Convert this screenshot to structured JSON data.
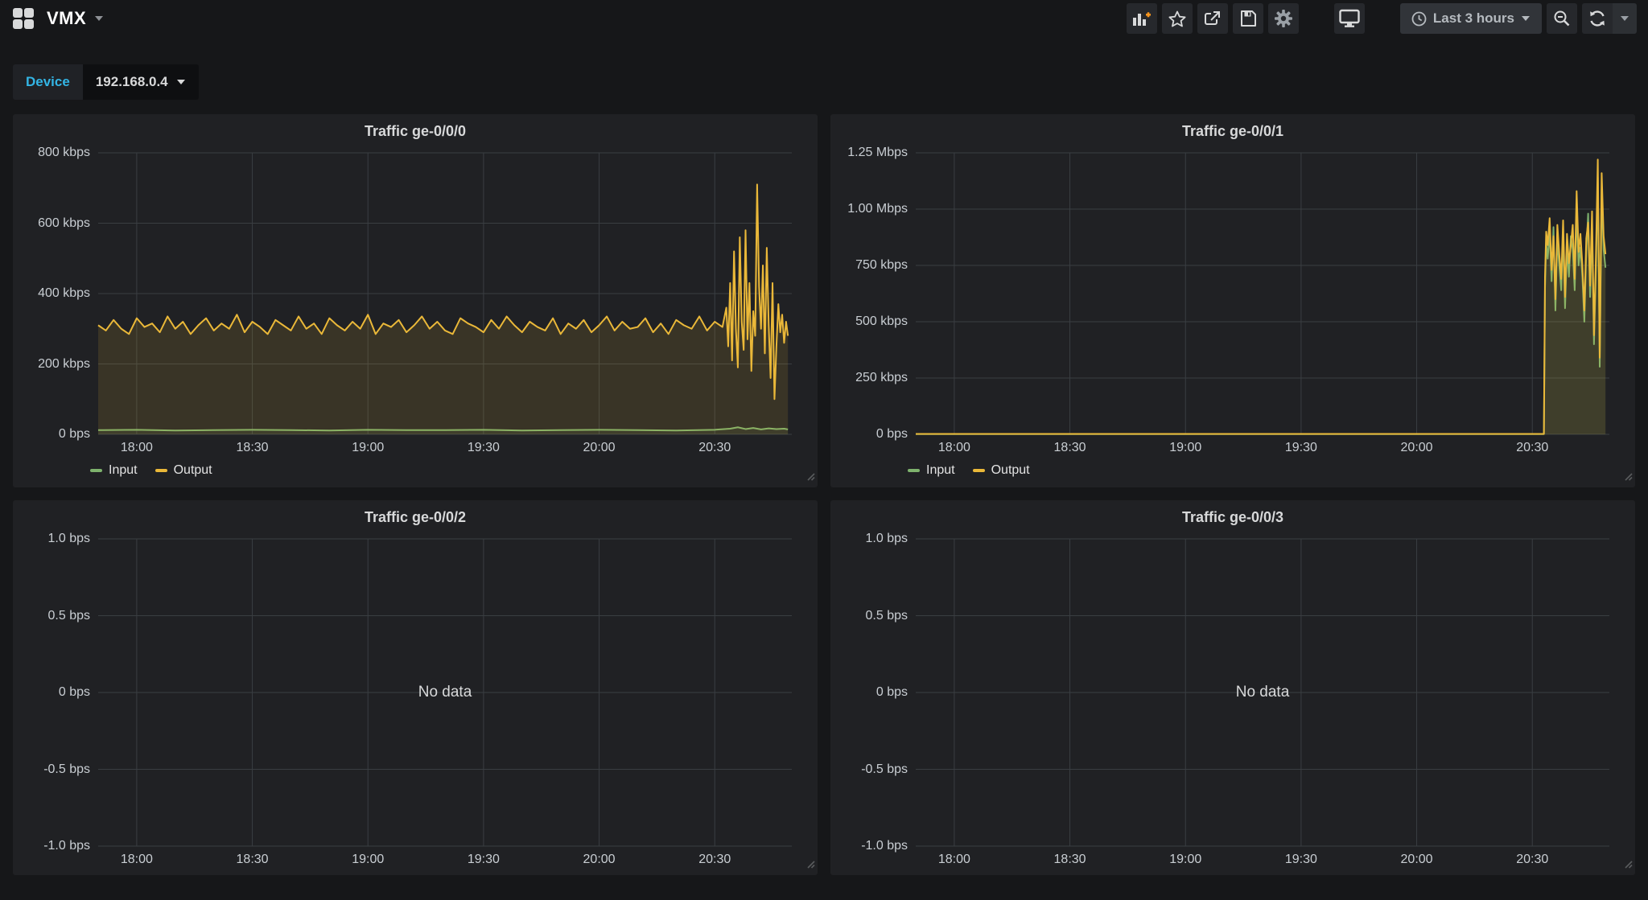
{
  "navbar": {
    "title": "VMX",
    "time_range_label": "Last 3 hours",
    "icons": [
      "grid-logo",
      "caret-down",
      "add-panel",
      "star",
      "share",
      "save",
      "settings-gear",
      "cycle-view-monitor",
      "clock",
      "zoom-out",
      "refresh",
      "refresh-caret"
    ]
  },
  "variables": {
    "label": "Device",
    "value": "192.168.0.4"
  },
  "colors": {
    "page_bg": "#161719",
    "panel_bg": "#202124",
    "grid_line": "#3a3e42",
    "input_green": "#7EB26D",
    "output_yellow": "#EAB839",
    "accent_cyan": "#33b5e5",
    "add_plus_orange": "#f7941e",
    "axis_text": "#c9ced3",
    "title_text": "#d8d9da"
  },
  "chart_data": [
    {
      "type": "area",
      "title": "Traffic ge-0/0/0",
      "unit": "kbps",
      "x_range_minutes": [
        0,
        180
      ],
      "x_ticks": [
        {
          "m": 10,
          "label": "18:00"
        },
        {
          "m": 40,
          "label": "18:30"
        },
        {
          "m": 70,
          "label": "19:00"
        },
        {
          "m": 100,
          "label": "19:30"
        },
        {
          "m": 130,
          "label": "20:00"
        },
        {
          "m": 160,
          "label": "20:30"
        }
      ],
      "y_min": 0,
      "y_max": 800,
      "y_ticks": [
        {
          "v": 800,
          "label": "800 kbps"
        },
        {
          "v": 600,
          "label": "600 kbps"
        },
        {
          "v": 400,
          "label": "400 kbps"
        },
        {
          "v": 200,
          "label": "200 kbps"
        },
        {
          "v": 0,
          "label": "0 bps"
        }
      ],
      "legend_position": "bottom-left",
      "series": [
        {
          "name": "Input",
          "color": "#7EB26D",
          "fill_opacity": 0.08,
          "points": [
            [
              0,
              12
            ],
            [
              10,
              13
            ],
            [
              20,
              11
            ],
            [
              30,
              12
            ],
            [
              40,
              13
            ],
            [
              50,
              12
            ],
            [
              60,
              11
            ],
            [
              70,
              13
            ],
            [
              80,
              12
            ],
            [
              90,
              12
            ],
            [
              100,
              13
            ],
            [
              110,
              11
            ],
            [
              120,
              12
            ],
            [
              130,
              13
            ],
            [
              140,
              12
            ],
            [
              150,
              11
            ],
            [
              160,
              13
            ],
            [
              164,
              16
            ],
            [
              166,
              20
            ],
            [
              168,
              15
            ],
            [
              170,
              18
            ],
            [
              172,
              14
            ],
            [
              174,
              17
            ],
            [
              176,
              15
            ],
            [
              178,
              16
            ],
            [
              179,
              14
            ]
          ]
        },
        {
          "name": "Output",
          "color": "#EAB839",
          "fill_opacity": 0.13,
          "points": [
            [
              0,
              310
            ],
            [
              2,
              295
            ],
            [
              4,
              325
            ],
            [
              6,
              300
            ],
            [
              8,
              285
            ],
            [
              10,
              330
            ],
            [
              12,
              305
            ],
            [
              14,
              315
            ],
            [
              16,
              290
            ],
            [
              18,
              335
            ],
            [
              20,
              300
            ],
            [
              22,
              320
            ],
            [
              24,
              285
            ],
            [
              26,
              310
            ],
            [
              28,
              330
            ],
            [
              30,
              295
            ],
            [
              32,
              315
            ],
            [
              34,
              300
            ],
            [
              36,
              340
            ],
            [
              38,
              290
            ],
            [
              40,
              320
            ],
            [
              42,
              305
            ],
            [
              44,
              285
            ],
            [
              46,
              325
            ],
            [
              48,
              310
            ],
            [
              50,
              295
            ],
            [
              52,
              335
            ],
            [
              54,
              300
            ],
            [
              56,
              315
            ],
            [
              58,
              285
            ],
            [
              60,
              330
            ],
            [
              62,
              310
            ],
            [
              64,
              295
            ],
            [
              66,
              320
            ],
            [
              68,
              300
            ],
            [
              70,
              340
            ],
            [
              72,
              285
            ],
            [
              74,
              315
            ],
            [
              76,
              305
            ],
            [
              78,
              325
            ],
            [
              80,
              290
            ],
            [
              82,
              310
            ],
            [
              84,
              335
            ],
            [
              86,
              300
            ],
            [
              88,
              320
            ],
            [
              90,
              295
            ],
            [
              92,
              285
            ],
            [
              94,
              330
            ],
            [
              96,
              315
            ],
            [
              98,
              305
            ],
            [
              100,
              290
            ],
            [
              102,
              325
            ],
            [
              104,
              300
            ],
            [
              106,
              335
            ],
            [
              108,
              310
            ],
            [
              110,
              290
            ],
            [
              112,
              320
            ],
            [
              114,
              305
            ],
            [
              116,
              295
            ],
            [
              118,
              330
            ],
            [
              120,
              285
            ],
            [
              122,
              315
            ],
            [
              124,
              300
            ],
            [
              126,
              325
            ],
            [
              128,
              290
            ],
            [
              130,
              310
            ],
            [
              132,
              335
            ],
            [
              134,
              295
            ],
            [
              136,
              320
            ],
            [
              138,
              300
            ],
            [
              140,
              305
            ],
            [
              142,
              330
            ],
            [
              144,
              290
            ],
            [
              146,
              315
            ],
            [
              148,
              285
            ],
            [
              150,
              325
            ],
            [
              152,
              310
            ],
            [
              154,
              300
            ],
            [
              156,
              335
            ],
            [
              158,
              295
            ],
            [
              160,
              320
            ],
            [
              162,
              305
            ],
            [
              163,
              360
            ],
            [
              163.5,
              250
            ],
            [
              164,
              430
            ],
            [
              164.5,
              210
            ],
            [
              165,
              520
            ],
            [
              165.5,
              300
            ],
            [
              166,
              190
            ],
            [
              166.5,
              560
            ],
            [
              167,
              320
            ],
            [
              167.5,
              240
            ],
            [
              168,
              580
            ],
            [
              168.5,
              270
            ],
            [
              169,
              430
            ],
            [
              169.5,
              180
            ],
            [
              170,
              350
            ],
            [
              170.5,
              280
            ],
            [
              171,
              710
            ],
            [
              171.5,
              420
            ],
            [
              172,
              300
            ],
            [
              172.5,
              480
            ],
            [
              173,
              230
            ],
            [
              173.5,
              530
            ],
            [
              174,
              310
            ],
            [
              174.5,
              160
            ],
            [
              175,
              430
            ],
            [
              175.5,
              100
            ],
            [
              176,
              250
            ],
            [
              176.5,
              370
            ],
            [
              177,
              290
            ],
            [
              177.5,
              340
            ],
            [
              178,
              260
            ],
            [
              178.5,
              320
            ],
            [
              179,
              280
            ]
          ]
        }
      ]
    },
    {
      "type": "area",
      "title": "Traffic ge-0/0/1",
      "unit": "kbps",
      "x_range_minutes": [
        0,
        180
      ],
      "x_ticks": [
        {
          "m": 10,
          "label": "18:00"
        },
        {
          "m": 40,
          "label": "18:30"
        },
        {
          "m": 70,
          "label": "19:00"
        },
        {
          "m": 100,
          "label": "19:30"
        },
        {
          "m": 130,
          "label": "20:00"
        },
        {
          "m": 160,
          "label": "20:30"
        }
      ],
      "y_min": 0,
      "y_max": 1250,
      "y_ticks": [
        {
          "v": 1250,
          "label": "1.25 Mbps"
        },
        {
          "v": 1000,
          "label": "1.00 Mbps"
        },
        {
          "v": 750,
          "label": "750 kbps"
        },
        {
          "v": 500,
          "label": "500 kbps"
        },
        {
          "v": 250,
          "label": "250 kbps"
        },
        {
          "v": 0,
          "label": "0 bps"
        }
      ],
      "legend_position": "bottom-left",
      "series": [
        {
          "name": "Input",
          "color": "#7EB26D",
          "fill_opacity": 0.08,
          "points": [
            [
              0,
              1
            ],
            [
              40,
              1
            ],
            [
              80,
              1
            ],
            [
              120,
              1
            ],
            [
              160,
              1
            ],
            [
              163,
              1
            ],
            [
              163.3,
              650
            ],
            [
              163.6,
              850
            ],
            [
              164,
              780
            ],
            [
              164.5,
              900
            ],
            [
              165,
              680
            ],
            [
              165.5,
              920
            ],
            [
              166,
              550
            ],
            [
              166.5,
              870
            ],
            [
              167,
              750
            ],
            [
              167.5,
              640
            ],
            [
              168,
              890
            ],
            [
              168.5,
              560
            ],
            [
              169,
              830
            ],
            [
              169.5,
              700
            ],
            [
              170,
              880
            ],
            [
              170.5,
              820
            ],
            [
              171,
              640
            ],
            [
              171.5,
              1000
            ],
            [
              172,
              750
            ],
            [
              172.5,
              830
            ],
            [
              173,
              700
            ],
            [
              173.5,
              500
            ],
            [
              174,
              810
            ],
            [
              174.5,
              980
            ],
            [
              175,
              610
            ],
            [
              175.5,
              930
            ],
            [
              176,
              400
            ],
            [
              176.5,
              740
            ],
            [
              177,
              1140
            ],
            [
              177.5,
              300
            ],
            [
              178,
              1090
            ],
            [
              178.5,
              820
            ],
            [
              179,
              740
            ]
          ]
        },
        {
          "name": "Output",
          "color": "#EAB839",
          "fill_opacity": 0.13,
          "points": [
            [
              0,
              2
            ],
            [
              40,
              2
            ],
            [
              80,
              2
            ],
            [
              120,
              2
            ],
            [
              160,
              2
            ],
            [
              163,
              2
            ],
            [
              163.3,
              700
            ],
            [
              163.6,
              900
            ],
            [
              164,
              840
            ],
            [
              164.5,
              960
            ],
            [
              165,
              730
            ],
            [
              165.5,
              880
            ],
            [
              166,
              600
            ],
            [
              166.5,
              930
            ],
            [
              167,
              800
            ],
            [
              167.5,
              690
            ],
            [
              168,
              950
            ],
            [
              168.5,
              610
            ],
            [
              169,
              890
            ],
            [
              169.5,
              760
            ],
            [
              170,
              840
            ],
            [
              170.5,
              930
            ],
            [
              171,
              690
            ],
            [
              171.5,
              1080
            ],
            [
              172,
              810
            ],
            [
              172.5,
              890
            ],
            [
              173,
              750
            ],
            [
              173.5,
              550
            ],
            [
              174,
              870
            ],
            [
              174.5,
              940
            ],
            [
              175,
              660
            ],
            [
              175.5,
              990
            ],
            [
              176,
              440
            ],
            [
              176.5,
              790
            ],
            [
              177,
              1220
            ],
            [
              177.5,
              340
            ],
            [
              178,
              1160
            ],
            [
              178.5,
              880
            ],
            [
              179,
              800
            ]
          ]
        }
      ]
    },
    {
      "type": "line",
      "title": "Traffic ge-0/0/2",
      "unit": "bps",
      "no_data": "No data",
      "x_range_minutes": [
        0,
        180
      ],
      "x_ticks": [
        {
          "m": 10,
          "label": "18:00"
        },
        {
          "m": 40,
          "label": "18:30"
        },
        {
          "m": 70,
          "label": "19:00"
        },
        {
          "m": 100,
          "label": "19:30"
        },
        {
          "m": 130,
          "label": "20:00"
        },
        {
          "m": 160,
          "label": "20:30"
        }
      ],
      "y_min": -1,
      "y_max": 1,
      "y_ticks": [
        {
          "v": 1,
          "label": "1.0 bps"
        },
        {
          "v": 0.5,
          "label": "0.5 bps"
        },
        {
          "v": 0,
          "label": "0 bps"
        },
        {
          "v": -0.5,
          "label": "-0.5 bps"
        },
        {
          "v": -1,
          "label": "-1.0 bps"
        }
      ],
      "series": []
    },
    {
      "type": "line",
      "title": "Traffic ge-0/0/3",
      "unit": "bps",
      "no_data": "No data",
      "x_range_minutes": [
        0,
        180
      ],
      "x_ticks": [
        {
          "m": 10,
          "label": "18:00"
        },
        {
          "m": 40,
          "label": "18:30"
        },
        {
          "m": 70,
          "label": "19:00"
        },
        {
          "m": 100,
          "label": "19:30"
        },
        {
          "m": 130,
          "label": "20:00"
        },
        {
          "m": 160,
          "label": "20:30"
        }
      ],
      "y_min": -1,
      "y_max": 1,
      "y_ticks": [
        {
          "v": 1,
          "label": "1.0 bps"
        },
        {
          "v": 0.5,
          "label": "0.5 bps"
        },
        {
          "v": 0,
          "label": "0 bps"
        },
        {
          "v": -0.5,
          "label": "-0.5 bps"
        },
        {
          "v": -1,
          "label": "-1.0 bps"
        }
      ],
      "series": []
    }
  ]
}
